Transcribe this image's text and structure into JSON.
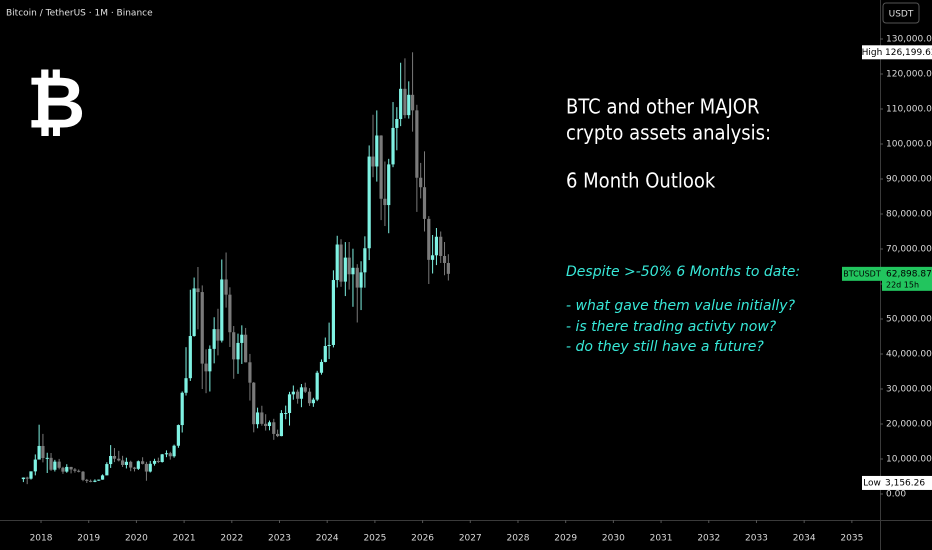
{
  "chart_data": {
    "type": "candlestick",
    "title": "Bitcoin / TetherUS · 1M · Binance",
    "currency": "USDT",
    "logo": "₿",
    "heading": [
      "BTC and other MAJOR",
      "crypto assets analysis:",
      "6 Month Outlook"
    ],
    "notes": [
      "Despite >-50% 6 Months to date:",
      "- what gave them value initially?",
      "- is there trading activty now?",
      "- do they still have a future?"
    ],
    "up_color": "#7ff2e3",
    "down_color": "#7a7a7a",
    "note_color": "#38e8d8",
    "tag_color": "#22c55e",
    "x": [
      2017.63,
      2017.71,
      2017.79,
      2017.88,
      2017.96,
      2018.04,
      2018.13,
      2018.21,
      2018.29,
      2018.38,
      2018.46,
      2018.54,
      2018.63,
      2018.71,
      2018.79,
      2018.88,
      2018.96,
      2019.04,
      2019.13,
      2019.21,
      2019.29,
      2019.38,
      2019.46,
      2019.54,
      2019.63,
      2019.71,
      2019.79,
      2019.88,
      2019.96,
      2020.04,
      2020.13,
      2020.21,
      2020.29,
      2020.38,
      2020.46,
      2020.54,
      2020.63,
      2020.71,
      2020.79,
      2020.88,
      2020.96,
      2021.04,
      2021.13,
      2021.21,
      2021.29,
      2021.38,
      2021.46,
      2021.54,
      2021.63,
      2021.71,
      2021.79,
      2021.88,
      2021.96,
      2022.04,
      2022.13,
      2022.21,
      2022.29,
      2022.38,
      2022.46,
      2022.54,
      2022.63,
      2022.71,
      2022.79,
      2022.88,
      2022.96,
      2023.04,
      2023.13,
      2023.21,
      2023.29,
      2023.38,
      2023.46,
      2023.54,
      2023.63,
      2023.71,
      2023.79,
      2023.88,
      2023.96,
      2024.04,
      2024.13,
      2024.21,
      2024.29,
      2024.38,
      2024.46,
      2024.54,
      2024.63,
      2024.71,
      2024.79,
      2024.88,
      2024.96,
      2025.04,
      2025.13,
      2025.21,
      2025.29,
      2025.38,
      2025.46,
      2025.54,
      2025.63,
      2025.71,
      2025.79,
      2025.88,
      2025.96,
      2026.04,
      2026.13,
      2026.21,
      2026.29,
      2026.38,
      2026.46,
      2026.54
    ],
    "open": [
      4261,
      4690,
      4378,
      6463,
      9838,
      13716,
      10285,
      10326,
      6923,
      9246,
      7494,
      6391,
      7730,
      7011,
      6626,
      6371,
      4041,
      3742,
      3458,
      3813,
      4103,
      5320,
      8555,
      10855,
      10085,
      9596,
      8293,
      9199,
      7546,
      7195,
      9352,
      8600,
      6410,
      8625,
      9448,
      9138,
      11335,
      11650,
      10776,
      13791,
      19695,
      28923,
      33092,
      45135,
      58740,
      57694,
      37253,
      35045,
      41462,
      47100,
      43824,
      61300,
      56950,
      46216,
      38466,
      43160,
      45510,
      37630,
      31801,
      19942,
      23293,
      20050,
      19422,
      20490,
      17164,
      16542,
      23125,
      23141,
      28465,
      29233,
      27210,
      30472,
      29232,
      25940,
      26962,
      34639,
      37723,
      42284,
      42580,
      61130,
      71280,
      60672,
      67540,
      62772,
      64628,
      58974,
      63327,
      70215,
      96407,
      93576,
      102429,
      84350,
      82550,
      94172,
      104591,
      107135,
      115764,
      108246,
      114049,
      109608,
      90360,
      87650,
      78600,
      66900,
      68200,
      73500,
      68000,
      66000
    ],
    "high": [
      4745,
      4939,
      6470,
      11300,
      19798,
      17176,
      11786,
      11710,
      9759,
      10020,
      7780,
      8507,
      7760,
      7410,
      7000,
      6575,
      4310,
      4143,
      4198,
      4120,
      5600,
      9074,
      13970,
      13130,
      12326,
      10905,
      10370,
      9505,
      7750,
      9578,
      10500,
      9188,
      9460,
      10067,
      10380,
      11444,
      12468,
      12050,
      14100,
      19863,
      29300,
      41950,
      58352,
      61844,
      64854,
      59592,
      41330,
      42448,
      50500,
      52920,
      67000,
      69000,
      59053,
      47990,
      45821,
      48189,
      47444,
      40023,
      31986,
      24668,
      25211,
      22799,
      20988,
      21480,
      18387,
      23960,
      25250,
      29184,
      31000,
      29820,
      31431,
      31804,
      30244,
      27483,
      35198,
      38450,
      44700,
      48969,
      63913,
      73777,
      72797,
      71979,
      71997,
      70079,
      65660,
      66500,
      73620,
      99588,
      108353,
      109588,
      102500,
      95000,
      95758,
      111980,
      110530,
      123218,
      124474,
      117900,
      126199.63,
      111200,
      94600,
      97900,
      79400,
      74000,
      76000,
      75000,
      72000,
      68500
    ],
    "low": [
      3400,
      2817,
      4110,
      5325,
      10700,
      9035,
      6000,
      6600,
      6430,
      7035,
      5755,
      6070,
      5880,
      6100,
      6180,
      3652,
      3156.26,
      3349,
      3373,
      3733,
      4067,
      5350,
      7444,
      9110,
      9320,
      7710,
      7300,
      6515,
      6435,
      6871,
      8450,
      3782,
      6150,
      8106,
      8833,
      8975,
      10525,
      9825,
      10375,
      13195,
      17572,
      28130,
      32296,
      44950,
      47044,
      30000,
      28805,
      29278,
      37332,
      39600,
      43283,
      53256,
      42000,
      32917,
      34322,
      37155,
      37578,
      26700,
      17622,
      18781,
      19520,
      18125,
      18190,
      15476,
      16256,
      16499,
      21351,
      19549,
      26942,
      25811,
      24800,
      28861,
      25166,
      24901,
      26538,
      34097,
      37629,
      38555,
      41884,
      59005,
      59191,
      56552,
      58402,
      53485,
      49000,
      52550,
      58946,
      66835,
      90500,
      89256,
      78258,
      76555,
      74508,
      93377,
      98200,
      105100,
      107350,
      107255,
      103528,
      80600,
      84450,
      75000,
      60000,
      63000,
      65400,
      66000,
      62500,
      61000
    ],
    "close": [
      4690,
      4378,
      6463,
      9838,
      13716,
      10285,
      10326,
      6923,
      9246,
      7494,
      6391,
      7730,
      7011,
      6626,
      6371,
      4041,
      3742,
      3458,
      3813,
      4103,
      5320,
      8555,
      10855,
      10085,
      9596,
      8293,
      9199,
      7546,
      7195,
      9352,
      8600,
      6410,
      8625,
      9448,
      9138,
      11335,
      11650,
      10776,
      13791,
      19695,
      28923,
      33092,
      45135,
      58740,
      57694,
      37253,
      35045,
      41462,
      47100,
      43824,
      61300,
      56950,
      46216,
      38466,
      43160,
      45510,
      37630,
      31801,
      19942,
      23293,
      20050,
      19422,
      20490,
      17164,
      16542,
      23125,
      23141,
      28465,
      29233,
      27210,
      30472,
      29232,
      25940,
      26962,
      34639,
      37723,
      42284,
      42580,
      61130,
      71280,
      60672,
      67540,
      62772,
      64628,
      58974,
      63327,
      70215,
      96407,
      93576,
      102429,
      84350,
      82550,
      94172,
      104591,
      107135,
      115764,
      108246,
      114049,
      109608,
      90360,
      87650,
      78600,
      66900,
      68200,
      73500,
      68000,
      66000,
      62898.87
    ],
    "xlim": [
      2017.14,
      2035.59
    ],
    "xticks": [
      2018,
      2019,
      2020,
      2021,
      2022,
      2023,
      2024,
      2025,
      2026,
      2027,
      2028,
      2029,
      2030,
      2031,
      2032,
      2033,
      2034,
      2035
    ],
    "ylim": [
      -7430,
      141140
    ],
    "yticks": [
      {
        "value": 0,
        "label": "0.00"
      },
      {
        "value": 10000,
        "label": "10,000.00"
      },
      {
        "value": 20000,
        "label": "20,000.00"
      },
      {
        "value": 30000,
        "label": "30,000.00"
      },
      {
        "value": 40000,
        "label": "40,000.00"
      },
      {
        "value": 50000,
        "label": "50,000.00"
      },
      {
        "value": 60000,
        "label": "60,000.00"
      },
      {
        "value": 70000,
        "label": "70,000.00"
      },
      {
        "value": 80000,
        "label": "80,000.00"
      },
      {
        "value": 90000,
        "label": "90,000.00"
      },
      {
        "value": 100000,
        "label": "100,000.00"
      },
      {
        "value": 110000,
        "label": "110,000.00"
      },
      {
        "value": 120000,
        "label": "120,000.00"
      },
      {
        "value": 130000,
        "label": "130,000.00"
      }
    ],
    "high_marker": {
      "name": "High",
      "value": 126199.63,
      "label": "126,199.63"
    },
    "low_marker": {
      "name": "Low",
      "value": 3156.26,
      "label": "3,156.26"
    },
    "last_price": {
      "name": "BTCUSDT",
      "value": 62898.87,
      "label": "62,898.87",
      "countdown": "22d 15h"
    }
  }
}
